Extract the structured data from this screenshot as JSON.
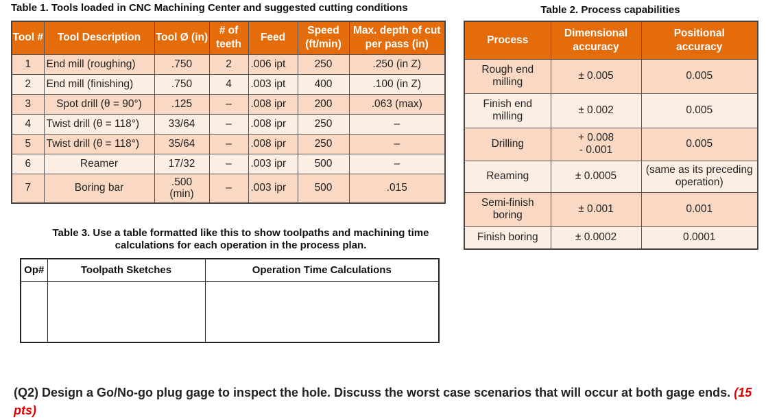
{
  "table1": {
    "caption": "Table 1.  Tools loaded in CNC Machining Center and suggested cutting conditions",
    "headers": [
      "Tool #",
      "Tool Description",
      "Tool Ø (in)",
      "# of teeth",
      "Feed",
      "Speed (ft/min)",
      "Max. depth of cut per pass (in)"
    ],
    "rows": [
      [
        "1",
        "End mill (roughing)",
        ".750",
        "2",
        ".006 ipt",
        "250",
        ".250  (in Z)"
      ],
      [
        "2",
        "End mill (finishing)",
        ".750",
        "4",
        ".003 ipt",
        "400",
        ".100  (in Z)"
      ],
      [
        "3",
        "Spot drill (θ = 90°)",
        ".125",
        "–",
        ".008 ipr",
        "200",
        ".063 (max)"
      ],
      [
        "4",
        "Twist drill (θ = 118°)",
        "33/64",
        "–",
        ".008 ipr",
        "250",
        "–"
      ],
      [
        "5",
        "Twist drill (θ = 118°)",
        "35/64",
        "–",
        ".008 ipr",
        "250",
        "–"
      ],
      [
        "6",
        "Reamer",
        "17/32",
        "–",
        ".003 ipr",
        "500",
        "–"
      ],
      [
        "7",
        "Boring bar",
        ".500 (min)",
        "–",
        ".003 ipr",
        "500",
        ".015"
      ]
    ]
  },
  "table2": {
    "caption": "Table 2.  Process capabilities",
    "headers": [
      "Process",
      "Dimensional accuracy",
      "Positional accuracy"
    ],
    "rows": [
      [
        "Rough end milling",
        "± 0.005",
        "0.005"
      ],
      [
        "Finish end milling",
        "± 0.002",
        "0.005"
      ],
      [
        "Drilling",
        "+ 0.008\n- 0.001",
        "0.005"
      ],
      [
        "Reaming",
        "± 0.0005",
        "(same as its preceding operation)"
      ],
      [
        "Semi-finish boring",
        "± 0.001",
        "0.001"
      ],
      [
        "Finish boring",
        "± 0.0002",
        "0.0001"
      ]
    ]
  },
  "table3": {
    "caption": "Table 3.  Use a table formatted like this to show toolpaths and machining time calculations for each operation in the process plan.",
    "headers": [
      "Op#",
      "Toolpath Sketches",
      "Operation Time Calculations"
    ]
  },
  "question": {
    "text": "(Q2) Design a Go/No-go plug gage to inspect the hole. Discuss the worst case scenarios that will occur at both gage ends.",
    "points": "(15 pts)"
  },
  "colors": {
    "header": "#e46c0a",
    "row_dark": "#f9d9c4",
    "row_light": "#fdeee4",
    "points": "#e00000"
  }
}
